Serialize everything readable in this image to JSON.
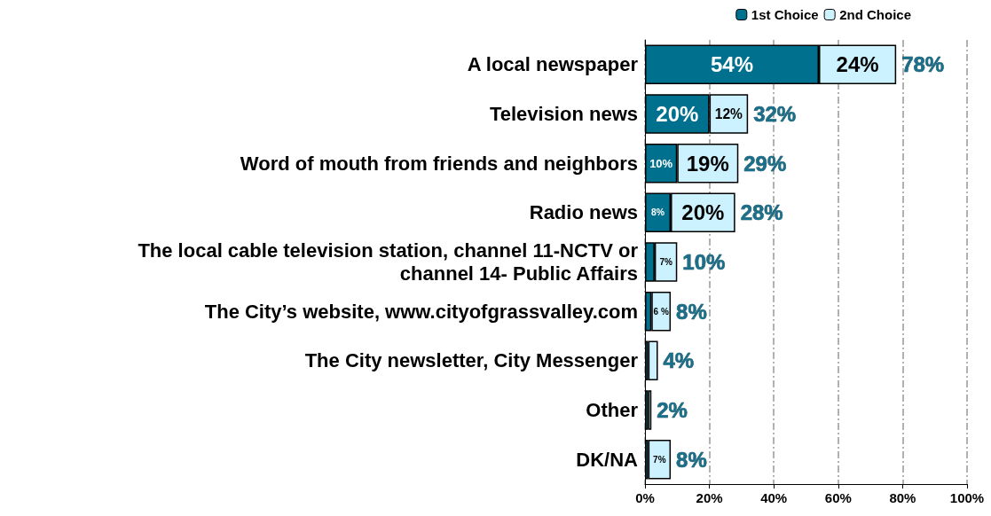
{
  "chart_data": {
    "type": "bar",
    "orientation": "horizontal",
    "stacked": true,
    "categories": [
      "A local newspaper",
      "Television news",
      "Word of mouth from friends and neighbors",
      "Radio news",
      "The local cable television station, channel 11-NCTV or\nchannel 14- Public Affairs",
      "The City’s website, www.cityofgrassvalley.com",
      "The City newsletter, City Messenger",
      "Other",
      "DK/NA"
    ],
    "series": [
      {
        "name": "1st Choice",
        "color": "#00708f",
        "values": [
          54,
          20,
          10,
          8,
          3,
          2,
          1,
          1,
          1
        ],
        "value_labels": [
          "54%",
          "20%",
          "10%",
          "8%",
          null,
          null,
          null,
          null,
          null
        ]
      },
      {
        "name": "2nd Choice",
        "color": "#ccf2ff",
        "values": [
          24,
          12,
          19,
          20,
          7,
          6,
          3,
          1,
          7
        ],
        "value_labels": [
          "24%",
          "12%",
          "19%",
          "20%",
          "7%",
          "6 %",
          null,
          null,
          "7%"
        ]
      }
    ],
    "totals": [
      "78%",
      "32%",
      "29%",
      "28%",
      "10%",
      "8%",
      "4%",
      "2%",
      "8%"
    ],
    "xlim": [
      0,
      100
    ],
    "xticks": [
      {
        "value": 0,
        "label": "0%"
      },
      {
        "value": 20,
        "label": "20%"
      },
      {
        "value": 40,
        "label": "40%"
      },
      {
        "value": 60,
        "label": "60%"
      },
      {
        "value": 80,
        "label": "80%"
      },
      {
        "value": 100,
        "label": "100%"
      }
    ],
    "grid": "x",
    "legend": "top right"
  }
}
